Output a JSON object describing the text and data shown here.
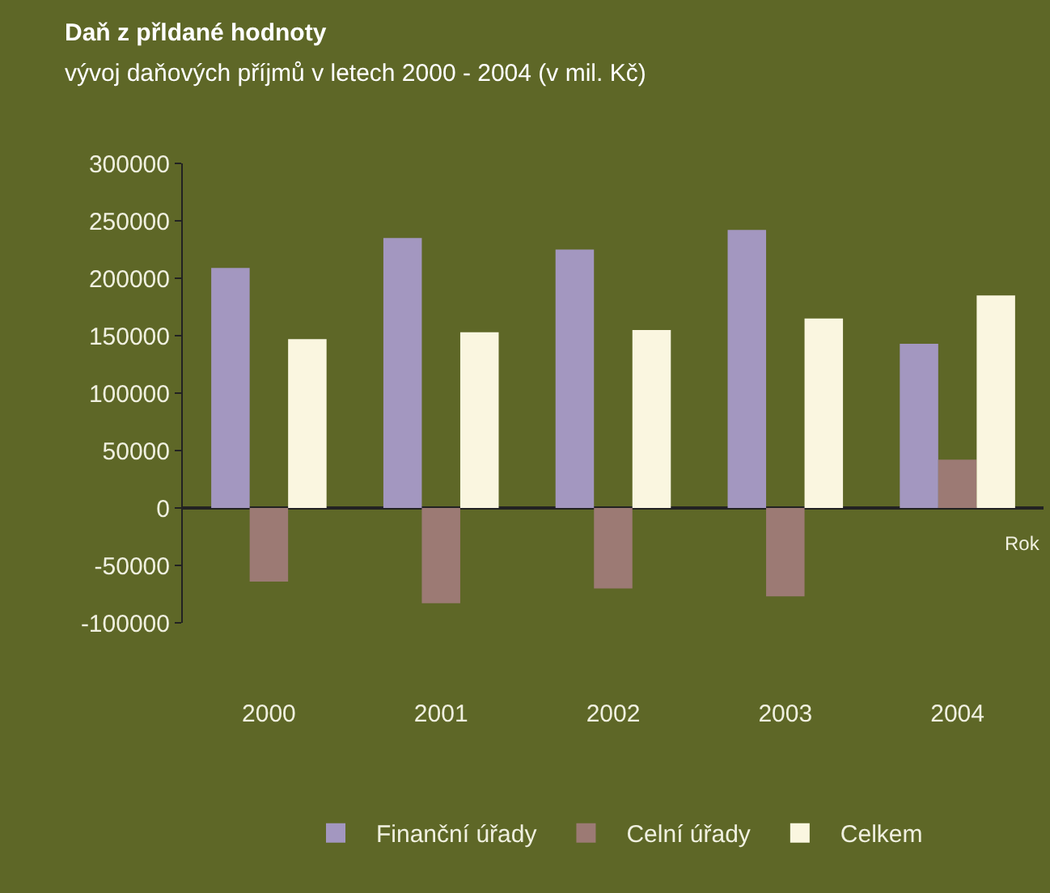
{
  "chart_data": {
    "type": "bar",
    "title": "Daň z přldané hodnoty",
    "subtitle": "vývoj daňových příjmů v letech 2000 - 2004 (v mil. Kč)",
    "xlabel": "Rok",
    "categories": [
      "2000",
      "2001",
      "2002",
      "2003",
      "2004"
    ],
    "series": [
      {
        "name": "Finanční úřady",
        "color": "#a397c0",
        "values": [
          209000,
          235000,
          225000,
          242000,
          143000
        ]
      },
      {
        "name": "Celní úřady",
        "color": "#9c7a74",
        "values": [
          -64000,
          -83000,
          -70000,
          -77000,
          42000
        ]
      },
      {
        "name": "Celkem",
        "color": "#faf6e0",
        "values": [
          147000,
          153000,
          155000,
          165000,
          185000
        ]
      }
    ],
    "ylim": [
      -100000,
      300000
    ],
    "yticks": [
      -100000,
      -50000,
      0,
      50000,
      100000,
      150000,
      200000,
      250000,
      300000
    ],
    "legend": "bottom"
  }
}
